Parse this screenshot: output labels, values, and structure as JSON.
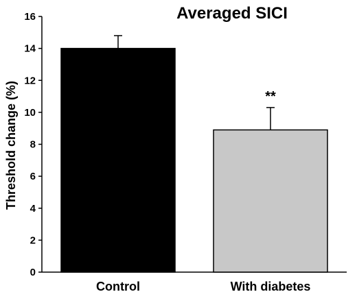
{
  "chart_data": {
    "type": "bar",
    "title": "Averaged SICI",
    "ylabel": "Threshold change (%)",
    "xlabel": "",
    "ylim": [
      0,
      16
    ],
    "yticks": [
      0,
      2,
      4,
      6,
      8,
      10,
      12,
      14,
      16
    ],
    "categories": [
      "Control",
      "With diabetes"
    ],
    "values": [
      14.0,
      8.9
    ],
    "error_upper": [
      0.8,
      1.4
    ],
    "bar_colors": [
      "#000000",
      "#c8c8c8"
    ],
    "annotations": [
      {
        "category": "With diabetes",
        "text": "**"
      }
    ],
    "grid": false,
    "legend": "none"
  }
}
